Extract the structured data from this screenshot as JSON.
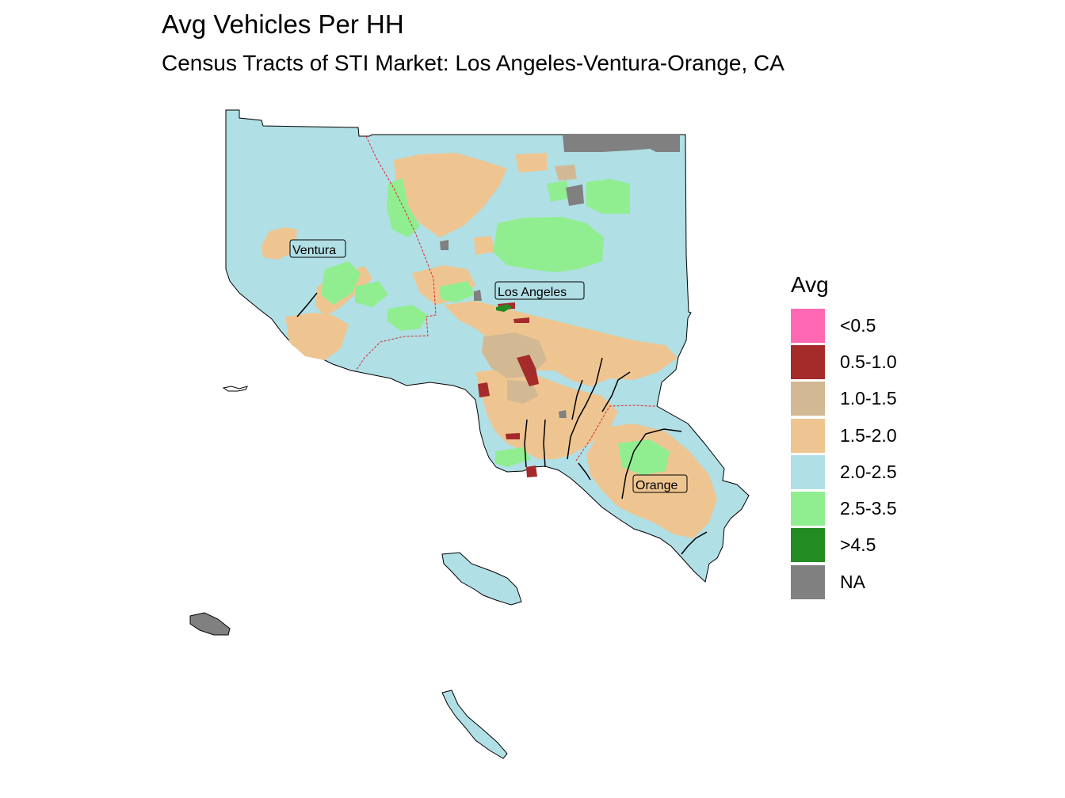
{
  "title": "Avg Vehicles Per HH",
  "subtitle": "Census Tracts of STI Market: Los Angeles-Ventura-Orange, CA",
  "legend": {
    "title": "Avg",
    "items": [
      {
        "label": "<0.5",
        "color": "#ff69b4"
      },
      {
        "label": "0.5-1.0",
        "color": "#a52a2a"
      },
      {
        "label": "1.0-1.5",
        "color": "#d2b994"
      },
      {
        "label": "1.5-2.0",
        "color": "#eec591"
      },
      {
        "label": "2.0-2.5",
        "color": "#b0dfe5"
      },
      {
        "label": "2.5-3.5",
        "color": "#90ee90"
      },
      {
        "label": ">4.5",
        "color": "#228b22"
      },
      {
        "label": "NA",
        "color": "#808080"
      }
    ]
  },
  "counties": [
    {
      "name": "Ventura"
    },
    {
      "name": "Los Angeles"
    },
    {
      "name": "Orange"
    }
  ]
}
